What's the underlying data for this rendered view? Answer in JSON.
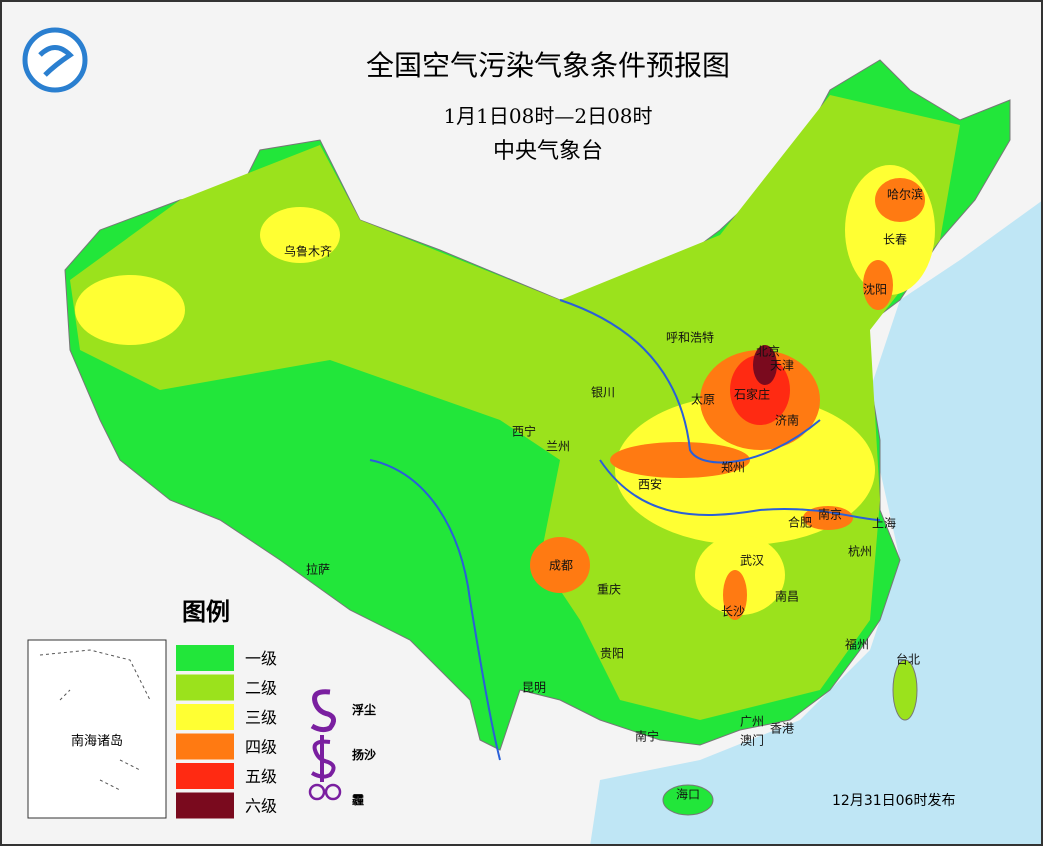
{
  "header": {
    "title": "全国空气污染气象条件预报图",
    "period": "1月1日08时—2日08时",
    "issuer": "中央气象台"
  },
  "legend": {
    "title": "图例",
    "levels": [
      {
        "label": "一级",
        "color": "#22e63a"
      },
      {
        "label": "二级",
        "color": "#9be21c"
      },
      {
        "label": "三级",
        "color": "#ffff33"
      },
      {
        "label": "四级",
        "color": "#ff7a12"
      },
      {
        "label": "五级",
        "color": "#ff2a12"
      },
      {
        "label": "六级",
        "color": "#7a0a1e"
      }
    ],
    "symbols": [
      {
        "label": "浮尘"
      },
      {
        "label": "扬沙"
      },
      {
        "label": "霾"
      }
    ]
  },
  "cities": [
    "乌鲁木齐",
    "哈尔滨",
    "长春",
    "沈阳",
    "呼和浩特",
    "北京",
    "天津",
    "银川",
    "太原",
    "石家庄",
    "济南",
    "西宁",
    "兰州",
    "郑州",
    "西安",
    "合肥",
    "南京",
    "上海",
    "杭州",
    "成都",
    "武汉",
    "拉萨",
    "重庆",
    "南昌",
    "长沙",
    "贵阳",
    "福州",
    "台北",
    "昆明",
    "南宁",
    "广州",
    "香港",
    "澳门",
    "海口"
  ],
  "inset": {
    "label": "南海诸岛"
  },
  "footer": "12月31日06时发布"
}
